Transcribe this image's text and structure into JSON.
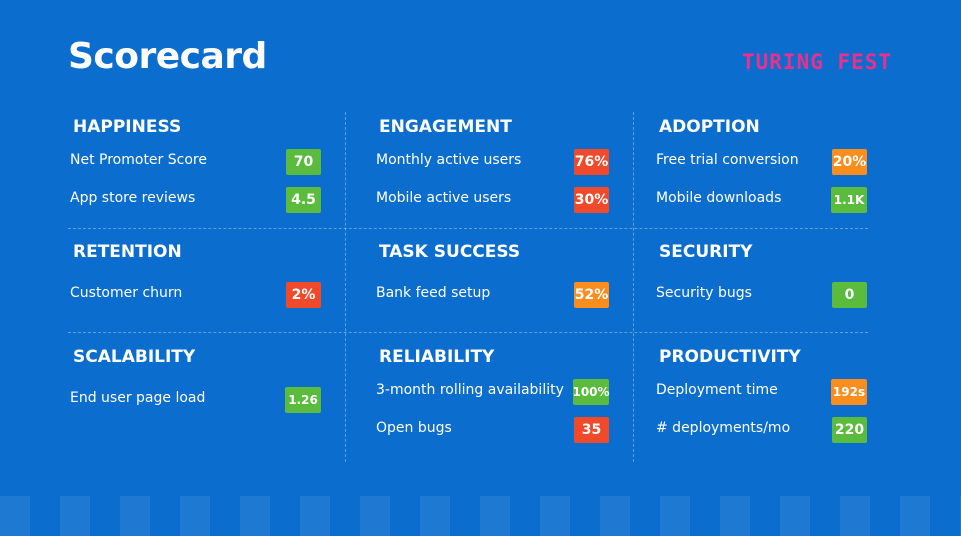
{
  "header": {
    "title": "Scorecard",
    "logo": "TURING FEST"
  },
  "sections": [
    {
      "heading": "HAPPINESS",
      "items": [
        {
          "label": "Net Promoter Score",
          "value": "70",
          "color": "#5bbb3c"
        },
        {
          "label": "App store reviews",
          "value": "4.5",
          "color": "#5bbb3c"
        }
      ]
    },
    {
      "heading": "ENGAGEMENT",
      "items": [
        {
          "label": "Monthly active users",
          "value": "76%",
          "color": "#f04a2b"
        },
        {
          "label": "Mobile active users",
          "value": "30%",
          "color": "#f04a2b"
        }
      ]
    },
    {
      "heading": "ADOPTION",
      "items": [
        {
          "label": "Free trial conversion",
          "value": "20%",
          "color": "#f98d1d"
        },
        {
          "label": "Mobile downloads",
          "value": "1.1K",
          "color": "#5bbb3c"
        }
      ]
    },
    {
      "heading": "RETENTION",
      "items": [
        {
          "label": "Customer churn",
          "value": "2%",
          "color": "#f04a2b"
        }
      ]
    },
    {
      "heading": "TASK SUCCESS",
      "items": [
        {
          "label": "Bank feed setup",
          "value": "52%",
          "color": "#f98d1d"
        }
      ]
    },
    {
      "heading": "SECURITY",
      "items": [
        {
          "label": "Security bugs",
          "value": "0",
          "color": "#5bbb3c"
        }
      ]
    },
    {
      "heading": "SCALABILITY",
      "items": [
        {
          "label": "End user page load",
          "value": "1.26",
          "color": "#5bbb3c"
        }
      ]
    },
    {
      "heading": "RELIABILITY",
      "items": [
        {
          "label": "3-month rolling availability",
          "value": "100%",
          "color": "#5bbb3c"
        },
        {
          "label": "Open bugs",
          "value": "35",
          "color": "#f04a2b"
        }
      ]
    },
    {
      "heading": "PRODUCTIVITY",
      "items": [
        {
          "label": "Deployment time",
          "value": "192s",
          "color": "#f98d1d"
        },
        {
          "label": "# deployments/mo",
          "value": "220",
          "color": "#5bbb3c"
        }
      ]
    }
  ]
}
